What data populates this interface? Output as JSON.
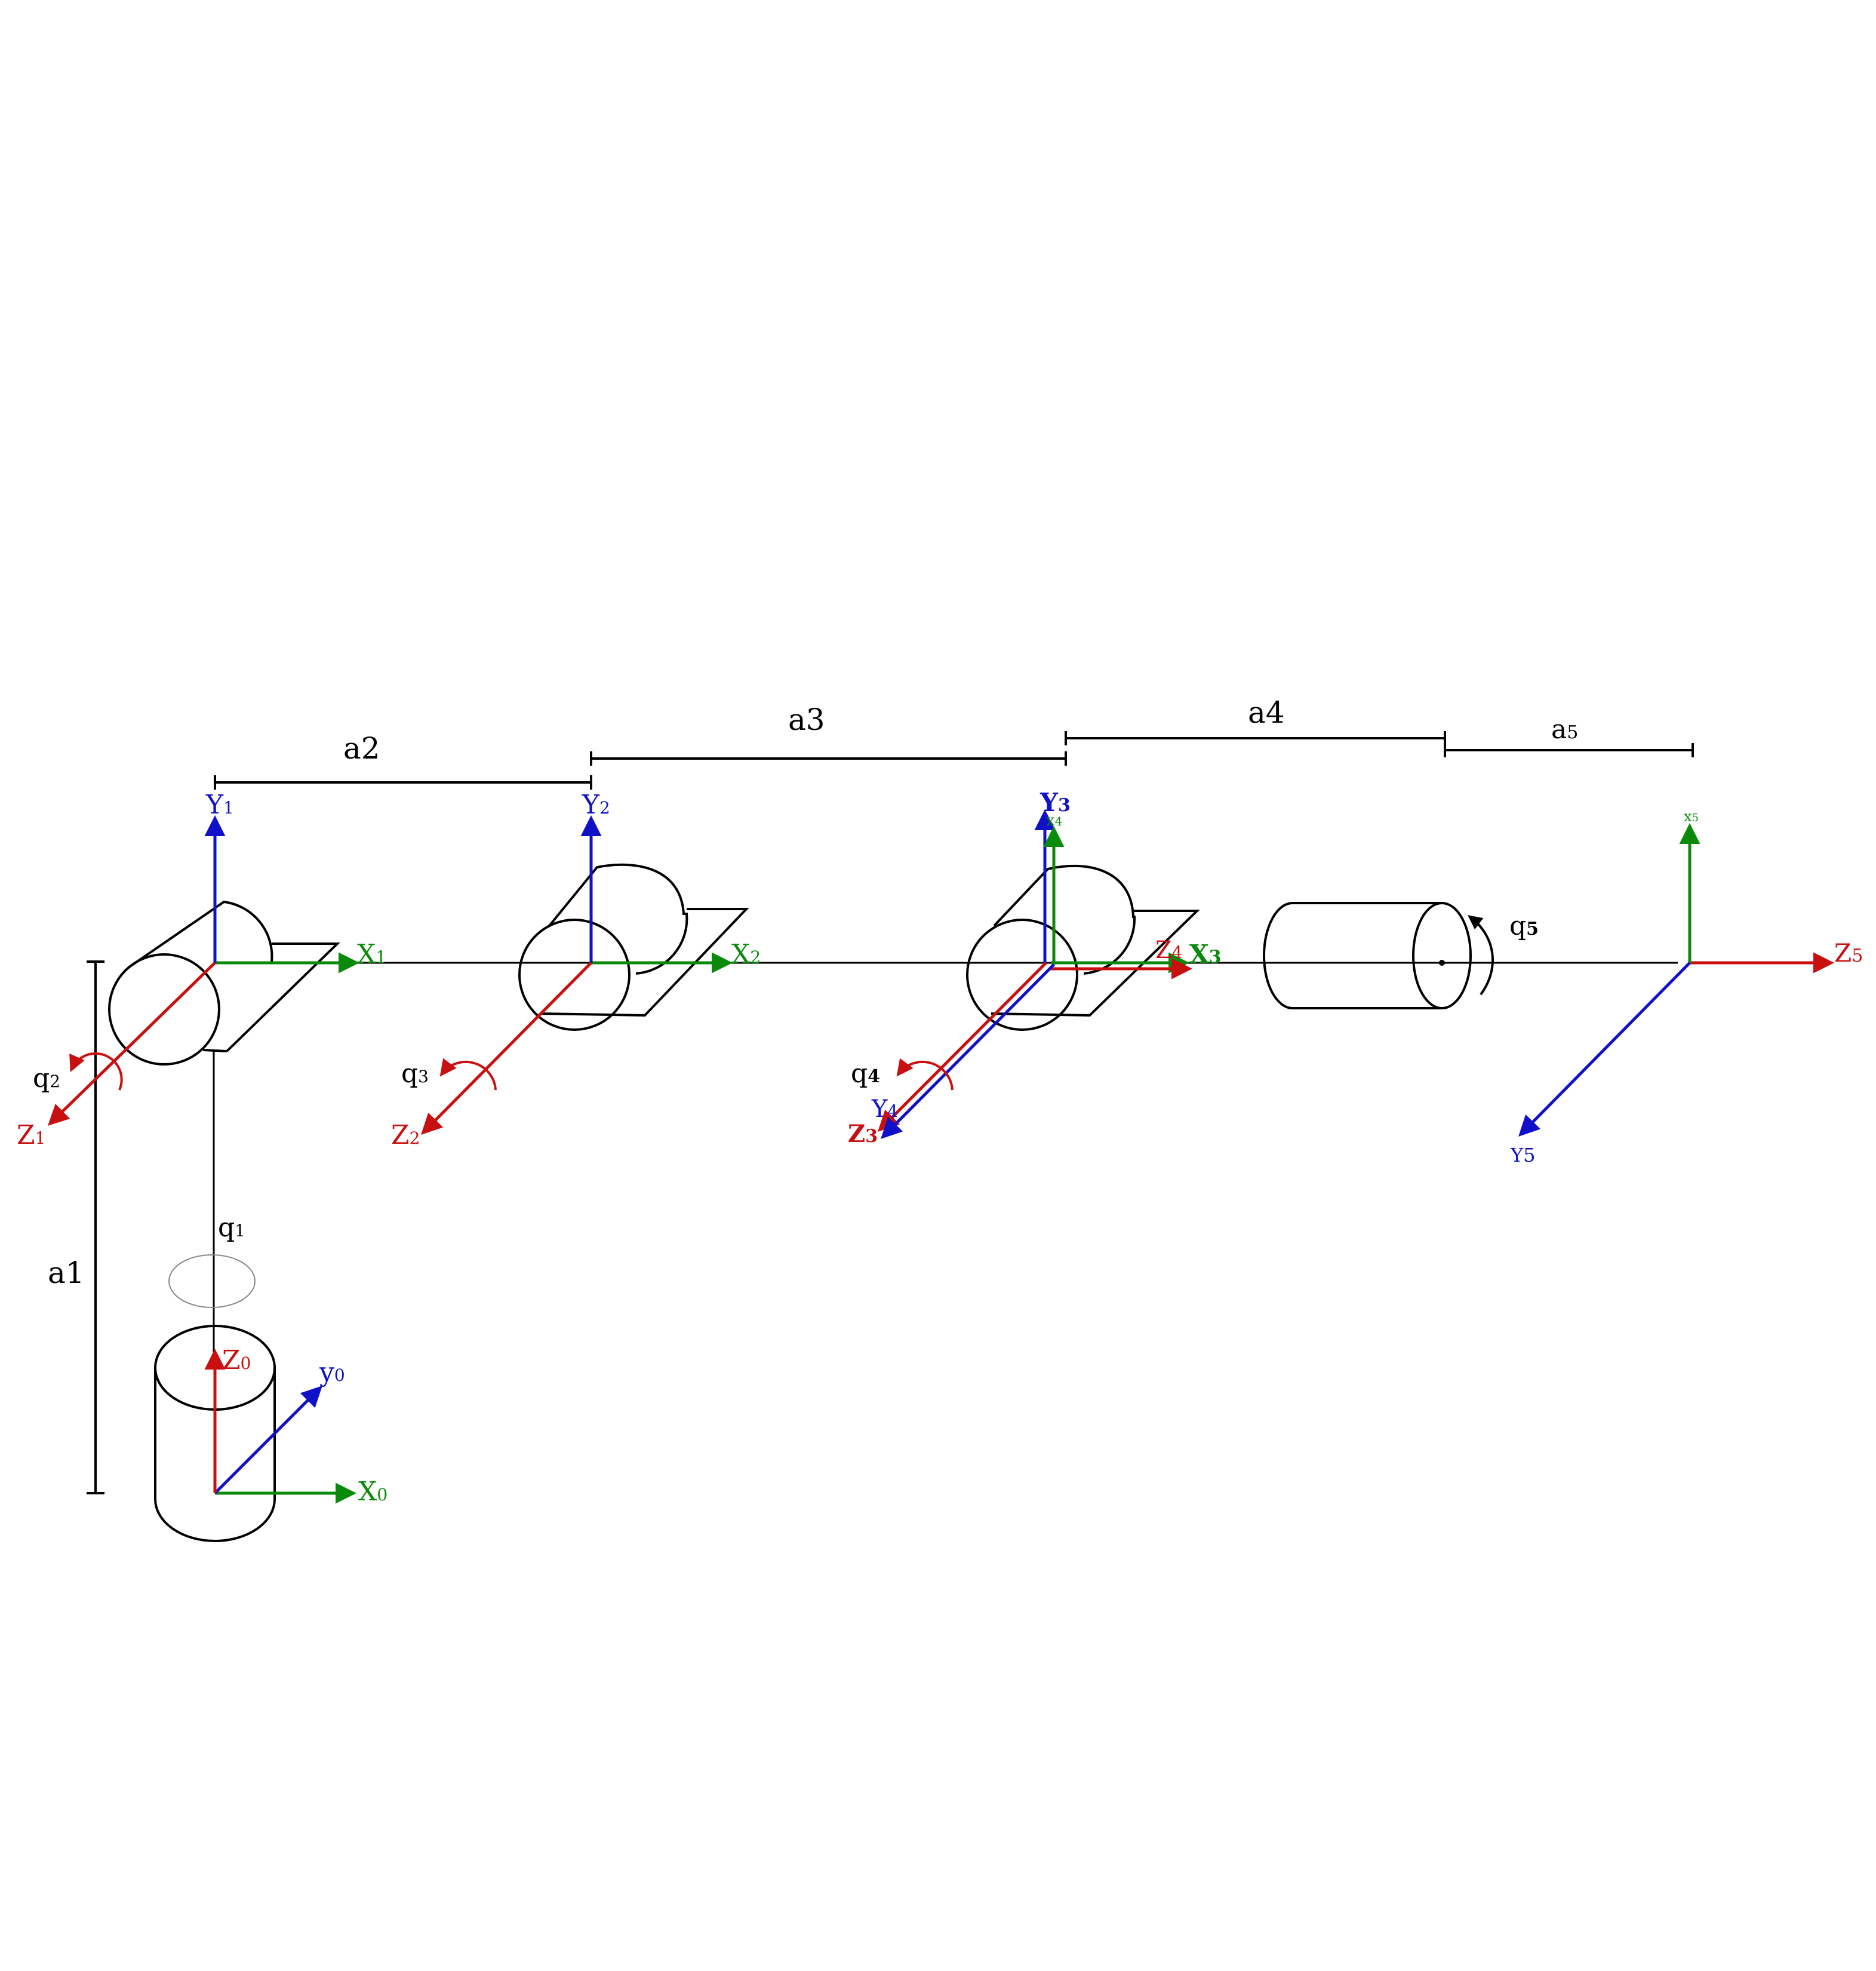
{
  "colors": {
    "x_axis": "#0a8a0a",
    "y_axis": "#1010c8",
    "z_axis": "#c81010",
    "structure": "#000000",
    "background": "#ffffff"
  },
  "dimensions": {
    "a1": "a1",
    "a2": "a2",
    "a3": "a3",
    "a4": "a4",
    "a5": "a",
    "a5_sub": "5"
  },
  "joints": {
    "q1": {
      "letter": "q",
      "sub": "1"
    },
    "q2": {
      "letter": "q",
      "sub": "2"
    },
    "q3": {
      "letter": "q",
      "sub": "3"
    },
    "q4": {
      "letter": "q",
      "sub": "4"
    },
    "q5": {
      "letter": "q",
      "sub": "5"
    }
  },
  "frames": {
    "f0": {
      "x": {
        "letter": "X",
        "sub": "0"
      },
      "y": {
        "letter": "y",
        "sub": "0"
      },
      "z": {
        "letter": "Z",
        "sub": "0"
      }
    },
    "f1": {
      "x": {
        "letter": "X",
        "sub": "1"
      },
      "y": {
        "letter": "Y",
        "sub": "1"
      },
      "z": {
        "letter": "Z",
        "sub": "1"
      }
    },
    "f2": {
      "x": {
        "letter": "X",
        "sub": "2"
      },
      "y": {
        "letter": "Y",
        "sub": "2"
      },
      "z": {
        "letter": "Z",
        "sub": "2"
      }
    },
    "f3": {
      "x": {
        "letter": "X",
        "sub": "3"
      },
      "y": {
        "letter": "Y",
        "sub": "3"
      },
      "z": {
        "letter": "Z",
        "sub": "3"
      }
    },
    "f4": {
      "x": {
        "letter": "x",
        "sub": "4"
      },
      "y": {
        "letter": "Y",
        "sub": "4"
      },
      "z": {
        "letter": "Z",
        "sub": "4"
      }
    },
    "f5": {
      "x": {
        "letter": "x",
        "sub": "5"
      },
      "y": {
        "letter": "Y5",
        "sub": ""
      },
      "z": {
        "letter": "Z",
        "sub": "5"
      }
    }
  }
}
